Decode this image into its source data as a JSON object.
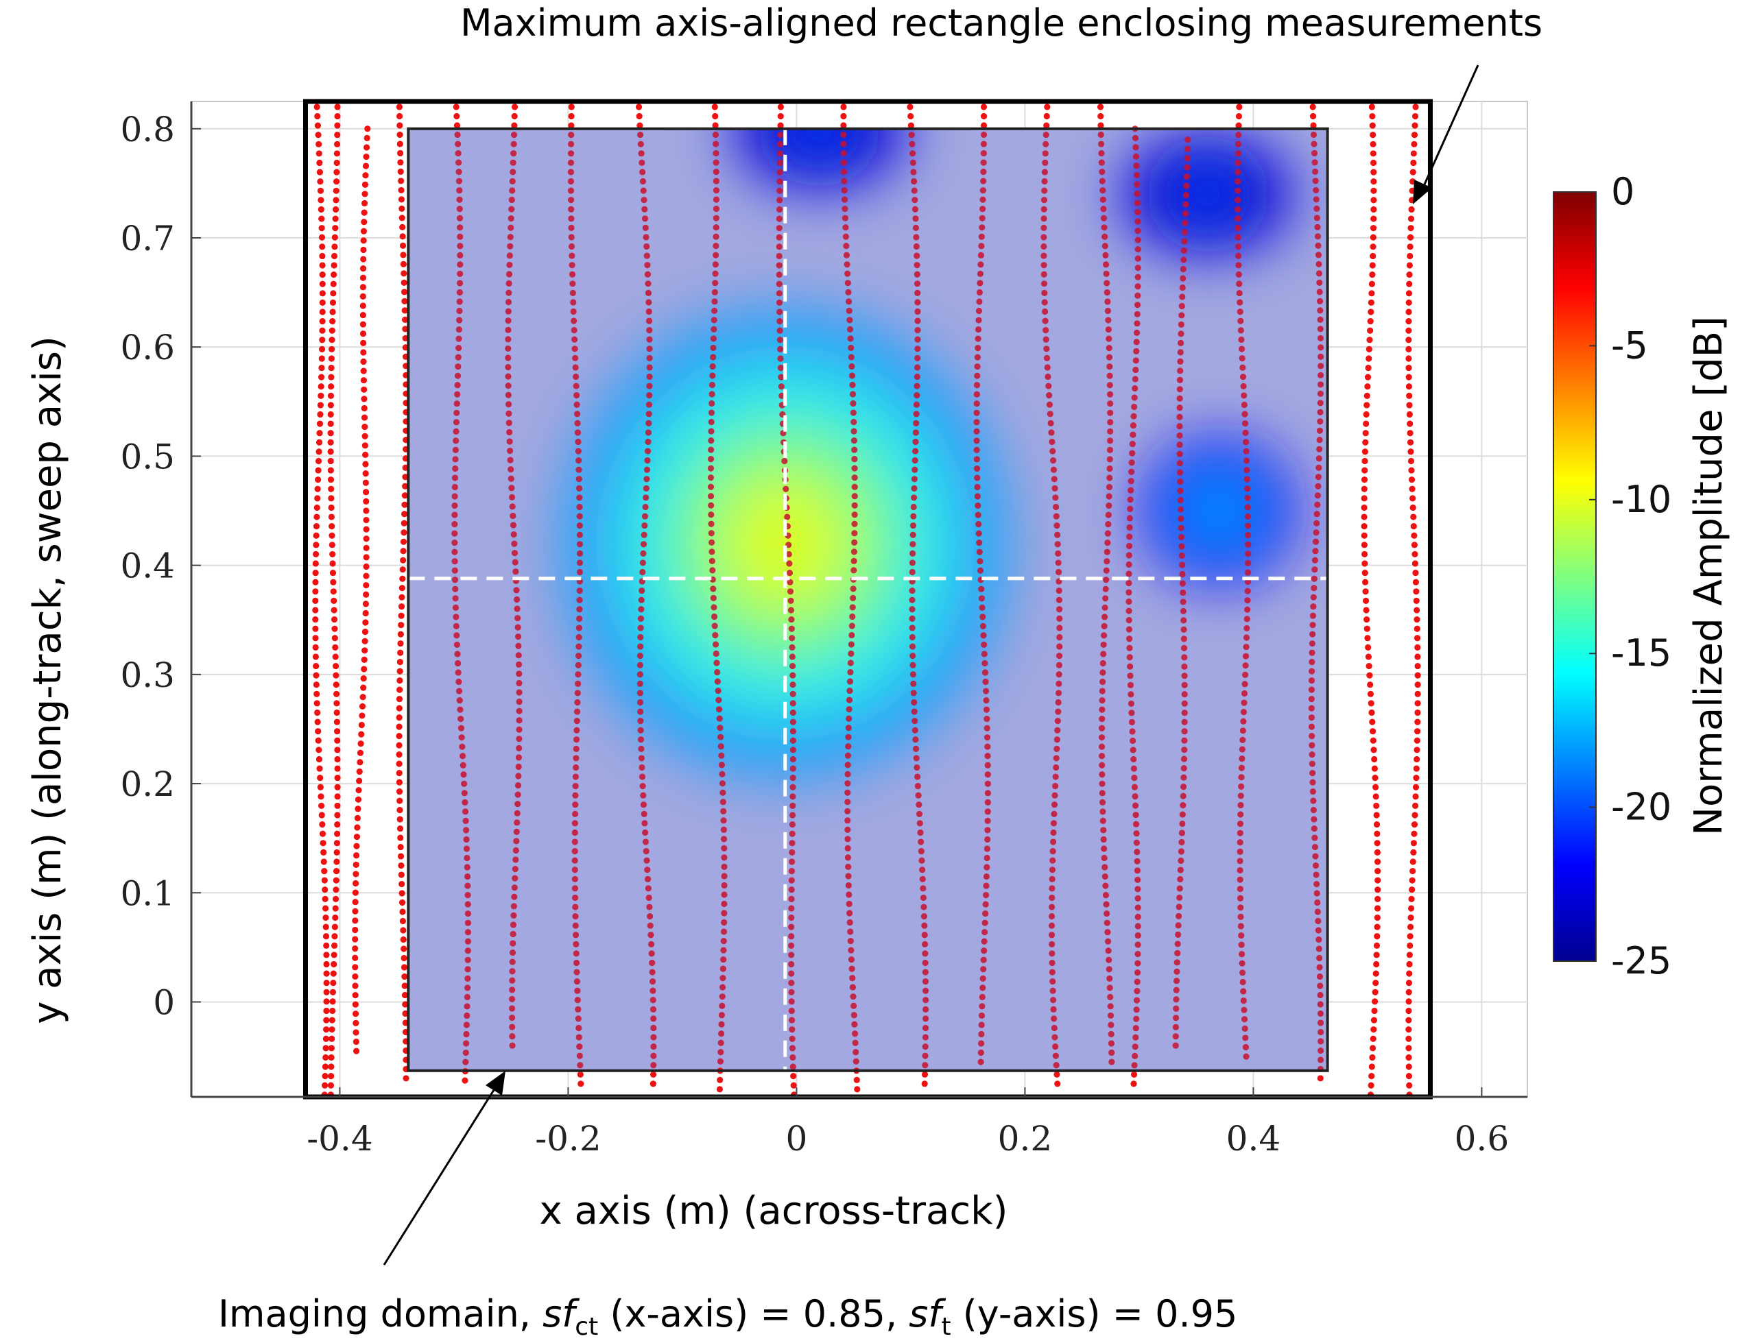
{
  "annotations": {
    "max_rect_label": "Maximum axis-aligned rectangle enclosing measurements",
    "imaging_label_prefix": "Imaging domain, ",
    "sf_symbol": "sf",
    "sf_ct_sub": "ct",
    "sf_ct_text": " (x-axis) = 0.85, ",
    "sf_t_sub": "t",
    "sf_t_text": " (y-axis) = 0.95"
  },
  "chart_data": {
    "type": "scatter",
    "xlabel": "x axis (m) (across-track)",
    "ylabel": "y axis (m) (along-track, sweep axis)",
    "xlim": [
      -0.53,
      0.64
    ],
    "ylim": [
      -0.087,
      0.825
    ],
    "xticks": [
      -0.4,
      -0.2,
      0,
      0.2,
      0.4,
      0.6
    ],
    "xtick_labels": [
      "-0.4",
      "-0.2",
      "0",
      "0.2",
      "0.4",
      "0.6"
    ],
    "yticks": [
      0,
      0.1,
      0.2,
      0.3,
      0.4,
      0.5,
      0.6,
      0.7,
      0.8
    ],
    "ytick_labels": [
      "0",
      "0.1",
      "0.2",
      "0.3",
      "0.4",
      "0.5",
      "0.6",
      "0.7",
      "0.8"
    ],
    "grid": true,
    "measurement_color": "#ee1111",
    "measurement_tracks": [
      {
        "x_top": -0.42,
        "x_bottom": -0.415,
        "wobble": 0.004,
        "y_top": 0.82,
        "y_bottom": -0.085
      },
      {
        "x_top": -0.405,
        "x_bottom": -0.405,
        "wobble": 0.003,
        "y_top": 0.82,
        "y_bottom": -0.085
      },
      {
        "x_top": -0.375,
        "x_bottom": -0.385,
        "wobble": 0.003,
        "y_top": 0.8,
        "y_bottom": -0.045
      },
      {
        "x_top": -0.345,
        "x_bottom": -0.345,
        "wobble": 0.003,
        "y_top": 0.82,
        "y_bottom": -0.07
      },
      {
        "x_top": -0.3,
        "x_bottom": -0.29,
        "wobble": 0.004,
        "y_top": 0.82,
        "y_bottom": -0.072
      },
      {
        "x_top": -0.25,
        "x_bottom": -0.245,
        "wobble": 0.004,
        "y_top": 0.82,
        "y_bottom": -0.04
      },
      {
        "x_top": -0.195,
        "x_bottom": -0.19,
        "wobble": 0.003,
        "y_top": 0.82,
        "y_bottom": -0.075
      },
      {
        "x_top": -0.135,
        "x_bottom": -0.13,
        "wobble": 0.005,
        "y_top": 0.82,
        "y_bottom": -0.075
      },
      {
        "x_top": -0.075,
        "x_bottom": -0.065,
        "wobble": 0.004,
        "y_top": 0.82,
        "y_bottom": -0.08
      },
      {
        "x_top": -0.015,
        "x_bottom": 0.0,
        "wobble": 0.003,
        "y_top": 0.82,
        "y_bottom": -0.085
      },
      {
        "x_top": 0.045,
        "x_bottom": 0.05,
        "wobble": 0.004,
        "y_top": 0.82,
        "y_bottom": -0.08
      },
      {
        "x_top": 0.1,
        "x_bottom": 0.11,
        "wobble": 0.004,
        "y_top": 0.82,
        "y_bottom": -0.075
      },
      {
        "x_top": 0.16,
        "x_bottom": 0.165,
        "wobble": 0.004,
        "y_top": 0.82,
        "y_bottom": -0.055
      },
      {
        "x_top": 0.22,
        "x_bottom": 0.23,
        "wobble": 0.005,
        "y_top": 0.82,
        "y_bottom": -0.075
      },
      {
        "x_top": 0.27,
        "x_bottom": 0.272,
        "wobble": 0.004,
        "y_top": 0.82,
        "y_bottom": -0.055
      },
      {
        "x_top": 0.295,
        "x_bottom": 0.295,
        "wobble": 0.004,
        "y_top": 0.8,
        "y_bottom": -0.075
      },
      {
        "x_top": 0.34,
        "x_bottom": 0.335,
        "wobble": 0.003,
        "y_top": 0.79,
        "y_bottom": -0.04
      },
      {
        "x_top": 0.39,
        "x_bottom": 0.393,
        "wobble": 0.004,
        "y_top": 0.82,
        "y_bottom": -0.05
      },
      {
        "x_top": 0.455,
        "x_bottom": 0.455,
        "wobble": 0.004,
        "y_top": 0.82,
        "y_bottom": -0.07
      },
      {
        "x_top": 0.5,
        "x_bottom": 0.505,
        "wobble": 0.005,
        "y_top": 0.82,
        "y_bottom": -0.085
      },
      {
        "x_top": 0.54,
        "x_bottom": 0.54,
        "wobble": 0.004,
        "y_top": 0.82,
        "y_bottom": -0.085
      }
    ],
    "max_rectangle": {
      "x": [
        -0.43,
        0.555
      ],
      "y": [
        -0.087,
        0.825
      ]
    },
    "imaging_domain": {
      "x": [
        -0.34,
        0.465
      ],
      "y": [
        -0.063,
        0.8
      ]
    },
    "crosshair": {
      "x": -0.01,
      "y": 0.388
    },
    "intensity_blobs": [
      {
        "x": -0.01,
        "y": 0.42,
        "level_db": -10,
        "rx": 0.2,
        "ry": 0.22
      },
      {
        "x": 0.37,
        "y": 0.45,
        "level_db": -17,
        "rx": 0.07,
        "ry": 0.07
      },
      {
        "x": 0.02,
        "y": 0.8,
        "level_db": -20,
        "rx": 0.08,
        "ry": 0.06
      },
      {
        "x": 0.36,
        "y": 0.74,
        "level_db": -20,
        "rx": 0.08,
        "ry": 0.06
      }
    ],
    "colorbar": {
      "label": "Normalized Amplitude [dB]",
      "range": [
        -25,
        0
      ],
      "ticks": [
        0,
        -5,
        -10,
        -15,
        -20,
        -25
      ],
      "tick_labels": [
        "0",
        "-5",
        "-10",
        "-15",
        "-20",
        "-25"
      ],
      "colormap": [
        "#7f0000",
        "#ff0000",
        "#ff8000",
        "#ffff00",
        "#80ff80",
        "#00ffff",
        "#0080ff",
        "#0000ff",
        "#00008f"
      ]
    }
  }
}
